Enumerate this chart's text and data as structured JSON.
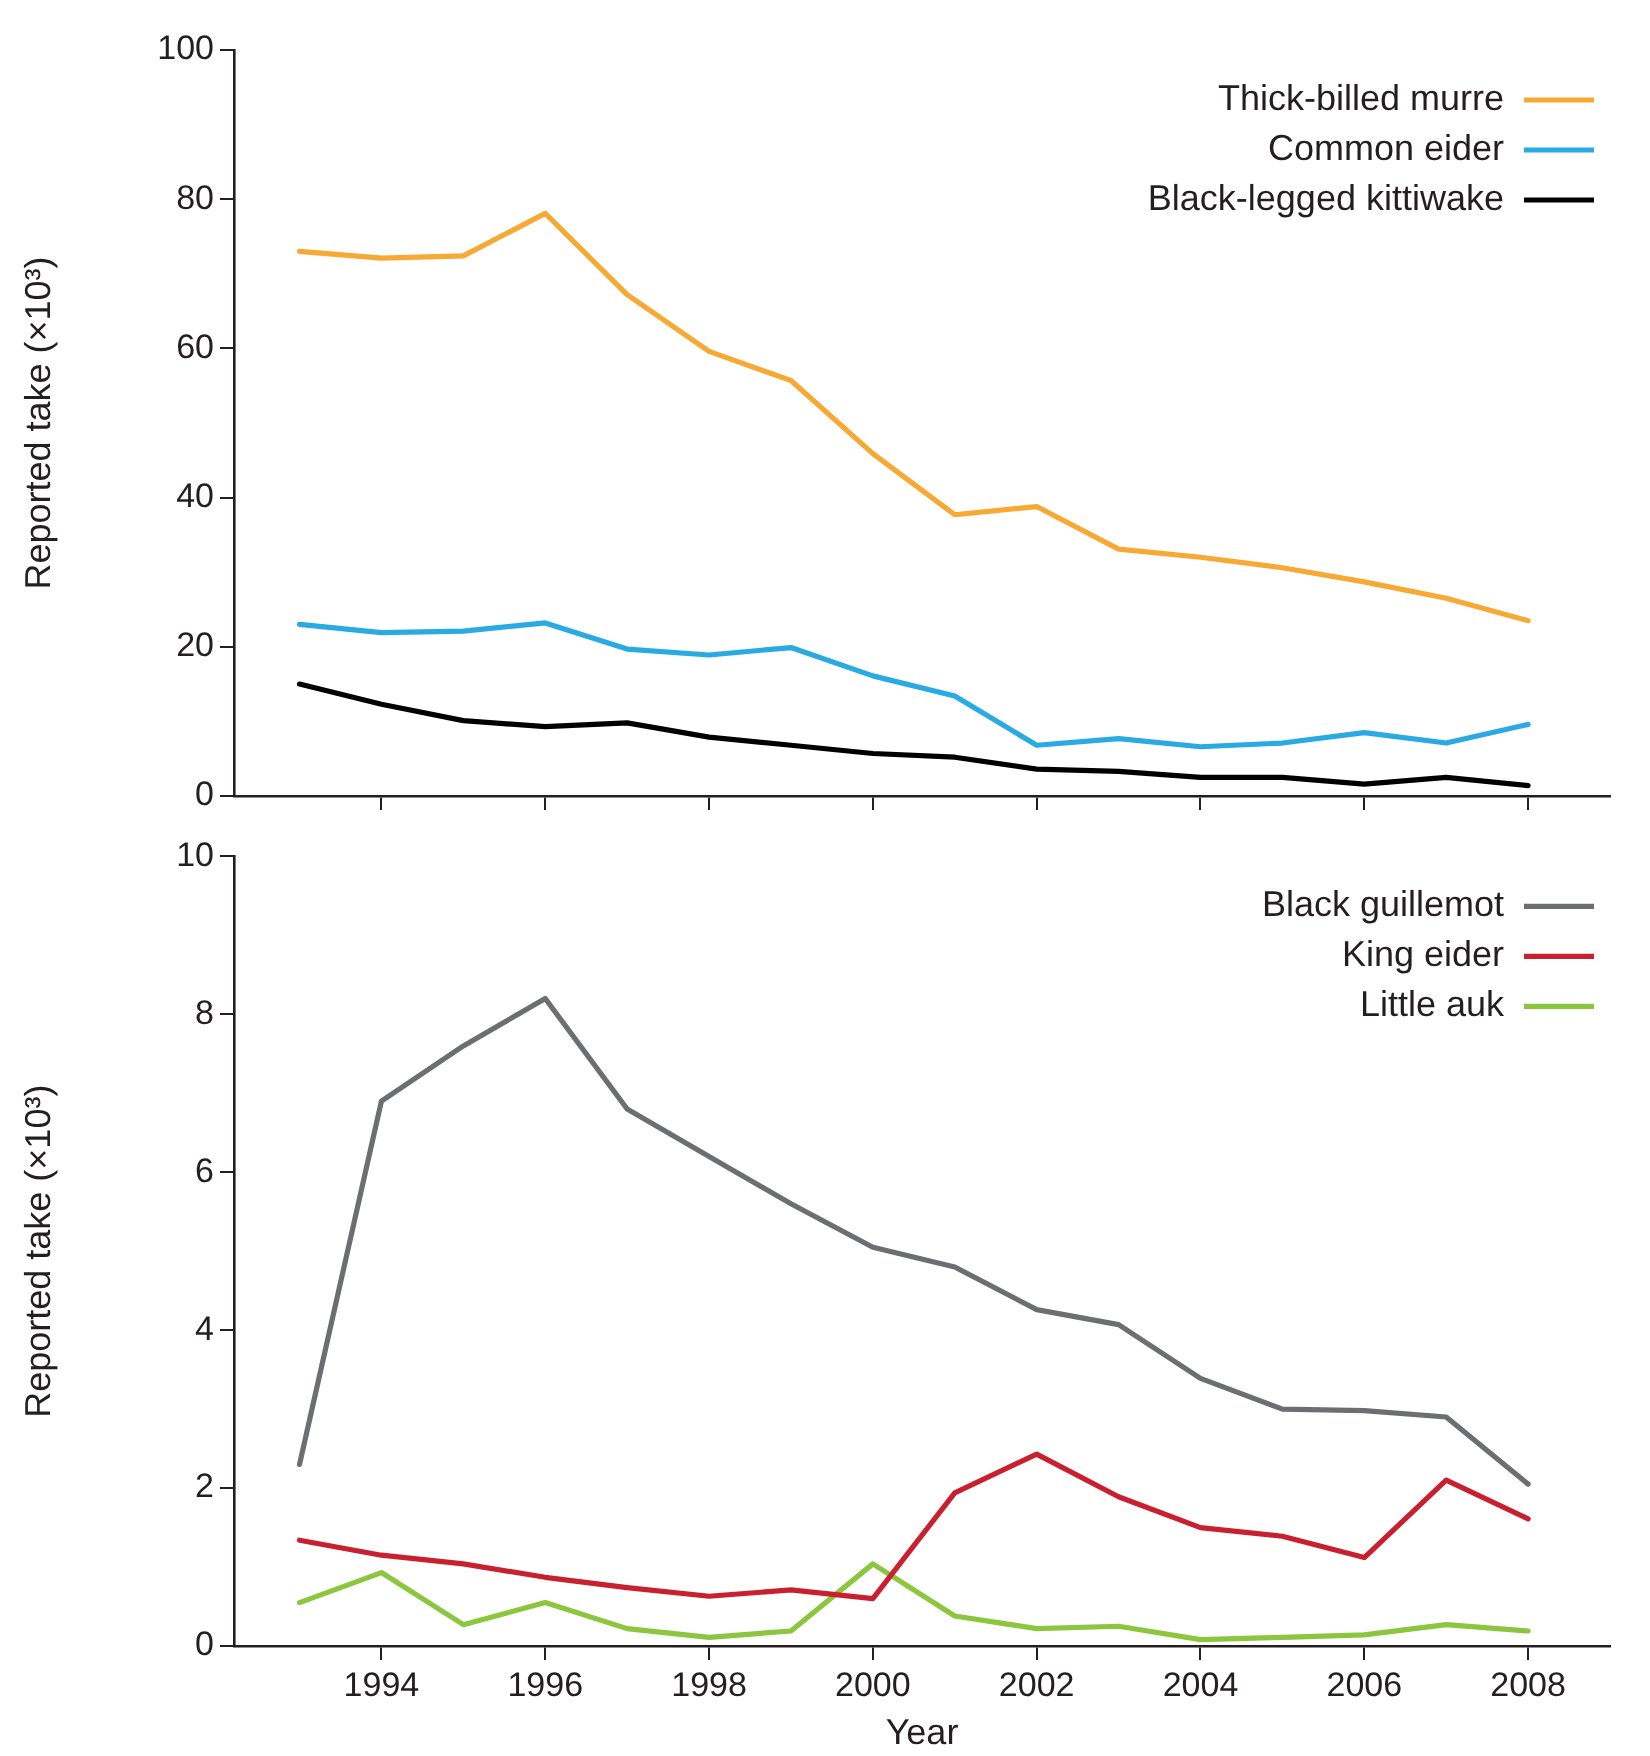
{
  "chart_data": [
    {
      "type": "line",
      "ylabel": "Reported take (×10³)",
      "x": [
        1993,
        1994,
        1995,
        1996,
        1997,
        1998,
        1999,
        2000,
        2001,
        2002,
        2003,
        2004,
        2005,
        2006,
        2007,
        2008
      ],
      "xlim": [
        1992.2,
        2009
      ],
      "xticks": [
        1994,
        1996,
        1998,
        2000,
        2002,
        2004,
        2006,
        2008
      ],
      "ylim": [
        0,
        100
      ],
      "yticks": [
        0,
        20,
        40,
        60,
        80,
        100
      ],
      "tick_labels": "y",
      "grid": false,
      "legend": "top right",
      "marker": "none",
      "series": [
        {
          "name": "Thick-billed murre",
          "color": "#f7a934",
          "values": [
            73,
            72.1,
            72.4,
            78.1,
            67.2,
            59.6,
            55.7,
            45.9,
            37.7,
            38.8,
            33.1,
            32,
            30.6,
            28.7,
            26.5,
            23.5
          ]
        },
        {
          "name": "Common eider",
          "color": "#2aaae2",
          "values": [
            23,
            21.9,
            22.1,
            23.2,
            19.7,
            18.9,
            19.9,
            16.1,
            13.4,
            6.8,
            7.7,
            6.6,
            7.1,
            8.5,
            7.1,
            9.6
          ]
        },
        {
          "name": "Black-legged kittiwake",
          "color": "#000000",
          "values": [
            15,
            12.3,
            10.1,
            9.3,
            9.8,
            7.9,
            6.8,
            5.7,
            5.2,
            3.6,
            3.3,
            2.5,
            2.5,
            1.6,
            2.5,
            1.4
          ]
        }
      ]
    },
    {
      "type": "line",
      "xlabel": "Year",
      "ylabel": "Reported take (×10³)",
      "x": [
        1993,
        1994,
        1995,
        1996,
        1997,
        1998,
        1999,
        2000,
        2001,
        2002,
        2003,
        2004,
        2005,
        2006,
        2007,
        2008
      ],
      "xlim": [
        1992.2,
        2009
      ],
      "xticks": [
        1994,
        1996,
        1998,
        2000,
        2002,
        2004,
        2006,
        2008
      ],
      "ylim": [
        0,
        10
      ],
      "yticks": [
        0,
        2,
        4,
        6,
        8,
        10
      ],
      "grid": false,
      "legend": "top right",
      "marker": "none",
      "series": [
        {
          "name": "Black guillemot",
          "color": "#6d6e70",
          "values": [
            2.3,
            6.9,
            7.6,
            8.2,
            6.8,
            6.2,
            5.6,
            5.05,
            4.8,
            4.26,
            4.07,
            3.39,
            3.0,
            2.98,
            2.9,
            2.05
          ]
        },
        {
          "name": "King eider",
          "color": "#c8202f",
          "values": [
            1.34,
            1.15,
            1.04,
            0.87,
            0.74,
            0.63,
            0.71,
            0.6,
            1.94,
            2.43,
            1.89,
            1.5,
            1.39,
            1.12,
            2.1,
            1.61
          ]
        },
        {
          "name": "Little auk",
          "color": "#8cc63f",
          "values": [
            0.55,
            0.93,
            0.27,
            0.55,
            0.22,
            0.11,
            0.19,
            1.04,
            0.38,
            0.22,
            0.25,
            0.08,
            0.11,
            0.14,
            0.27,
            0.19
          ]
        }
      ]
    }
  ]
}
